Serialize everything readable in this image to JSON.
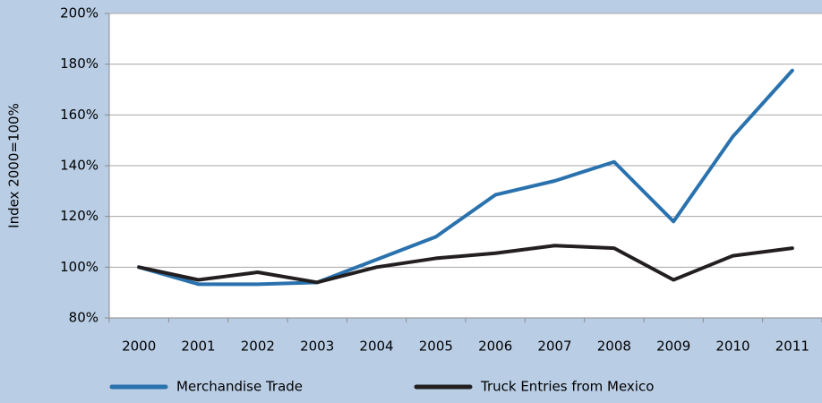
{
  "chart_data": {
    "type": "line",
    "y_label": "Index 2000=100%",
    "categories": [
      "2000",
      "2001",
      "2002",
      "2003",
      "2004",
      "2005",
      "2006",
      "2007",
      "2008",
      "2009",
      "2010",
      "2011"
    ],
    "series": [
      {
        "name": "Merchandise Trade",
        "color": "#2a72ae",
        "values": [
          100,
          93.3,
          93.3,
          94,
          103,
          112,
          128.5,
          134,
          141.5,
          118,
          151.5,
          177.5
        ]
      },
      {
        "name": "Truck Entries from Mexico",
        "color": "#231f20",
        "values": [
          100,
          95,
          98,
          94,
          100,
          103.5,
          105.5,
          108.5,
          107.5,
          95,
          104.5,
          107.5
        ]
      }
    ],
    "ylim": [
      80,
      200
    ],
    "yticks": [
      {
        "value": 80,
        "label": "80%"
      },
      {
        "value": 100,
        "label": "100%"
      },
      {
        "value": 120,
        "label": "120%"
      },
      {
        "value": 140,
        "label": "140%"
      },
      {
        "value": 160,
        "label": "160%"
      },
      {
        "value": 180,
        "label": "180%"
      },
      {
        "value": 200,
        "label": "200%"
      }
    ],
    "grid": true,
    "legend": "bottom"
  }
}
